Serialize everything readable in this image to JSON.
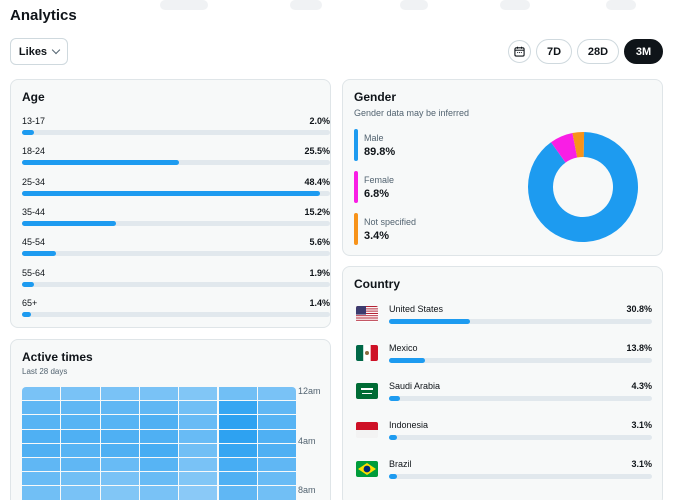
{
  "header": {
    "title": "Analytics"
  },
  "controls": {
    "metric_select": "Likes",
    "ranges": [
      {
        "label": "7D",
        "active": false
      },
      {
        "label": "28D",
        "active": false
      },
      {
        "label": "3M",
        "active": true
      }
    ]
  },
  "age": {
    "title": "Age",
    "rows": [
      {
        "label": "13-17",
        "pct_text": "2.0%",
        "value": 2.0
      },
      {
        "label": "18-24",
        "pct_text": "25.5%",
        "value": 25.5
      },
      {
        "label": "25-34",
        "pct_text": "48.4%",
        "value": 48.4
      },
      {
        "label": "35-44",
        "pct_text": "15.2%",
        "value": 15.2
      },
      {
        "label": "45-54",
        "pct_text": "5.6%",
        "value": 5.6
      },
      {
        "label": "55-64",
        "pct_text": "1.9%",
        "value": 1.9
      },
      {
        "label": "65+",
        "pct_text": "1.4%",
        "value": 1.4
      }
    ]
  },
  "gender": {
    "title": "Gender",
    "subtitle": "Gender data may be inferred",
    "items": [
      {
        "label": "Male",
        "pct_text": "89.8%",
        "value": 89.8,
        "color": "#1d9bf0"
      },
      {
        "label": "Female",
        "pct_text": "6.8%",
        "value": 6.8,
        "color": "#f91ee5"
      },
      {
        "label": "Not specified",
        "pct_text": "3.4%",
        "value": 3.4,
        "color": "#f7931a"
      }
    ]
  },
  "country": {
    "title": "Country",
    "rows": [
      {
        "name": "United States",
        "pct_text": "30.8%",
        "value": 30.8,
        "flag": "us-flag-icon"
      },
      {
        "name": "Mexico",
        "pct_text": "13.8%",
        "value": 13.8,
        "flag": "mexico-flag-icon"
      },
      {
        "name": "Saudi Arabia",
        "pct_text": "4.3%",
        "value": 4.3,
        "flag": "saudi-arabia-flag-icon"
      },
      {
        "name": "Indonesia",
        "pct_text": "3.1%",
        "value": 3.1,
        "flag": "indonesia-flag-icon"
      },
      {
        "name": "Brazil",
        "pct_text": "3.1%",
        "value": 3.1,
        "flag": "brazil-flag-icon"
      }
    ]
  },
  "active_times": {
    "title": "Active times",
    "subtitle": "Last 28 days",
    "hour_labels": [
      "12am",
      "4am",
      "8am"
    ],
    "intensity": [
      [
        0.45,
        0.45,
        0.45,
        0.45,
        0.4,
        0.5,
        0.45
      ],
      [
        0.6,
        0.6,
        0.6,
        0.6,
        0.5,
        0.85,
        0.6
      ],
      [
        0.65,
        0.65,
        0.65,
        0.7,
        0.55,
        0.9,
        0.65
      ],
      [
        0.7,
        0.7,
        0.7,
        0.7,
        0.55,
        0.9,
        0.7
      ],
      [
        0.7,
        0.65,
        0.7,
        0.75,
        0.5,
        0.85,
        0.7
      ],
      [
        0.6,
        0.6,
        0.55,
        0.65,
        0.45,
        0.75,
        0.6
      ],
      [
        0.55,
        0.5,
        0.45,
        0.55,
        0.4,
        0.7,
        0.55
      ],
      [
        0.5,
        0.45,
        0.4,
        0.45,
        0.35,
        0.6,
        0.5
      ],
      [
        0.45,
        0.4,
        0.4,
        0.4,
        0.35,
        0.5,
        0.45
      ]
    ]
  }
}
